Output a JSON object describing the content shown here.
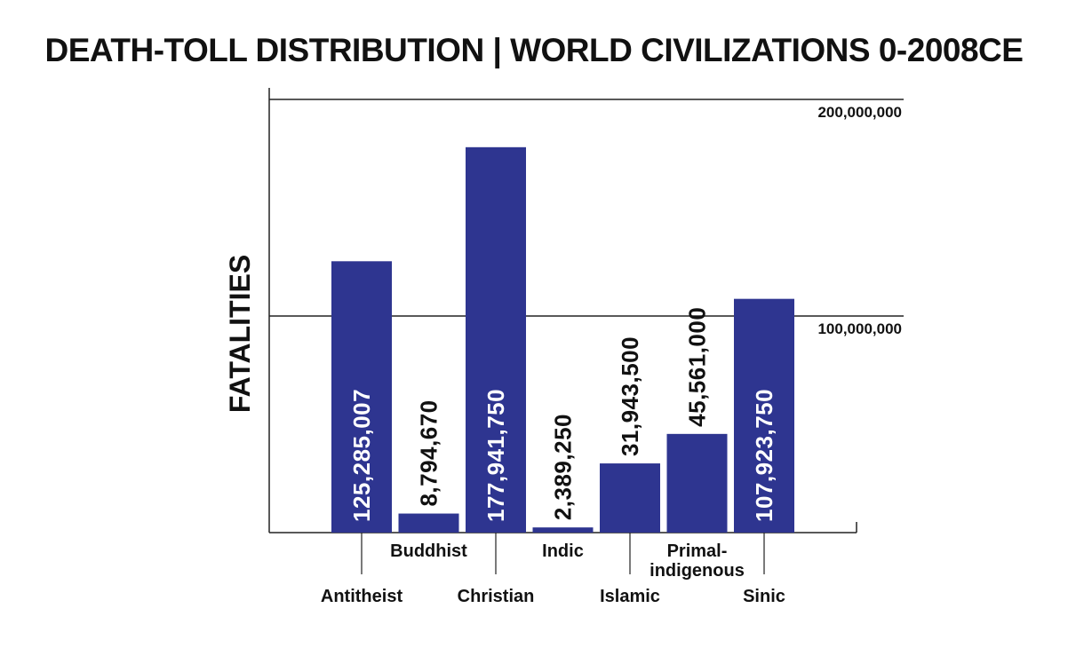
{
  "chart_data": {
    "type": "bar",
    "title": "DEATH-TOLL DISTRIBUTION | WORLD CIVILIZATIONS 0-2008CE",
    "ylabel": "FATALITIES",
    "xlabel": "",
    "ylim": [
      0,
      200000000
    ],
    "yticks": [
      {
        "value": 100000000,
        "label": "100,000,000"
      },
      {
        "value": 200000000,
        "label": "200,000,000"
      }
    ],
    "categories": [
      "Antitheist",
      "Buddhist",
      "Christian",
      "Indic",
      "Islamic",
      "Primal-indigenous",
      "Sinic"
    ],
    "category_lines": [
      [
        "Antitheist"
      ],
      [
        "Buddhist"
      ],
      [
        "Christian"
      ],
      [
        "Indic"
      ],
      [
        "Islamic"
      ],
      [
        "Primal-",
        "indigenous"
      ],
      [
        "Sinic"
      ]
    ],
    "values": [
      125285007,
      8794670,
      177941750,
      2389250,
      31943500,
      45561000,
      107923750
    ],
    "value_labels": [
      "125,285,007",
      "8,794,670",
      "177,941,750",
      "2,389,250",
      "31,943,500",
      "45,561,000",
      "107,923,750"
    ],
    "label_rows": [
      "lower",
      "upper",
      "lower",
      "upper",
      "lower",
      "upper",
      "lower"
    ],
    "bar_color": "#2e3590",
    "grid": true,
    "legend": "none"
  }
}
